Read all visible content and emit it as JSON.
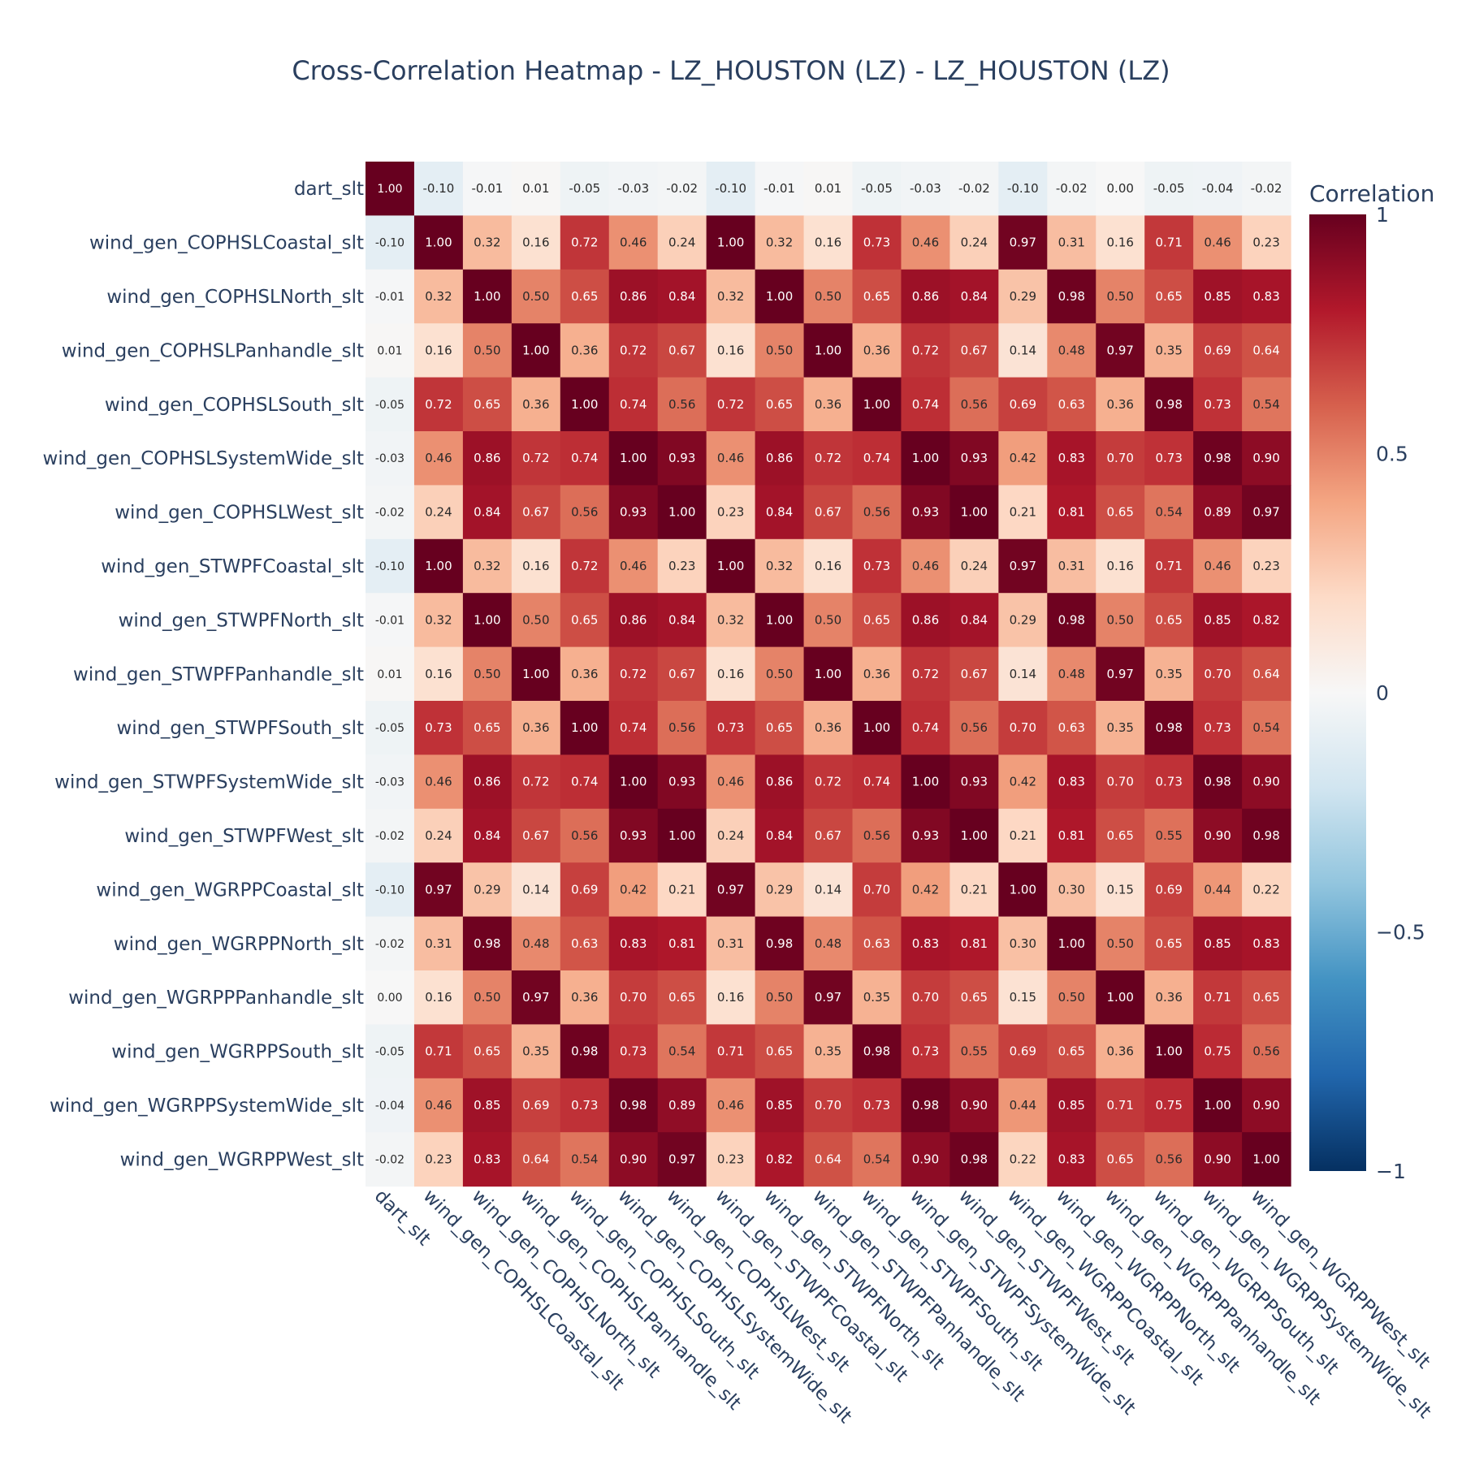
{
  "chart_data": {
    "type": "heatmap",
    "title": "Cross-Correlation Heatmap - LZ_HOUSTON (LZ) - LZ_HOUSTON (LZ)",
    "xlabel": "",
    "ylabel": "",
    "variables": [
      "dart_slt",
      "wind_gen_COPHSLCoastal_slt",
      "wind_gen_COPHSLNorth_slt",
      "wind_gen_COPHSLPanhandle_slt",
      "wind_gen_COPHSLSouth_slt",
      "wind_gen_COPHSLSystemWide_slt",
      "wind_gen_COPHSLWest_slt",
      "wind_gen_STWPFCoastal_slt",
      "wind_gen_STWPFNorth_slt",
      "wind_gen_STWPFPanhandle_slt",
      "wind_gen_STWPFSouth_slt",
      "wind_gen_STWPFSystemWide_slt",
      "wind_gen_STWPFWest_slt",
      "wind_gen_WGRPPCoastal_slt",
      "wind_gen_WGRPPNorth_slt",
      "wind_gen_WGRPPPanhandle_slt",
      "wind_gen_WGRPPSouth_slt",
      "wind_gen_WGRPPSystemWide_slt",
      "wind_gen_WGRPPWest_slt"
    ],
    "z": [
      [
        1.0,
        -0.1,
        -0.01,
        0.01,
        -0.05,
        -0.03,
        -0.02,
        -0.1,
        -0.01,
        0.01,
        -0.05,
        -0.03,
        -0.02,
        -0.1,
        -0.02,
        0.0,
        -0.05,
        -0.04,
        -0.02
      ],
      [
        -0.1,
        1.0,
        0.32,
        0.16,
        0.72,
        0.46,
        0.24,
        1.0,
        0.32,
        0.16,
        0.73,
        0.46,
        0.24,
        0.97,
        0.31,
        0.16,
        0.71,
        0.46,
        0.23
      ],
      [
        -0.01,
        0.32,
        1.0,
        0.5,
        0.65,
        0.86,
        0.84,
        0.32,
        1.0,
        0.5,
        0.65,
        0.86,
        0.84,
        0.29,
        0.98,
        0.5,
        0.65,
        0.85,
        0.83
      ],
      [
        0.01,
        0.16,
        0.5,
        1.0,
        0.36,
        0.72,
        0.67,
        0.16,
        0.5,
        1.0,
        0.36,
        0.72,
        0.67,
        0.14,
        0.48,
        0.97,
        0.35,
        0.69,
        0.64
      ],
      [
        -0.05,
        0.72,
        0.65,
        0.36,
        1.0,
        0.74,
        0.56,
        0.72,
        0.65,
        0.36,
        1.0,
        0.74,
        0.56,
        0.69,
        0.63,
        0.36,
        0.98,
        0.73,
        0.54
      ],
      [
        -0.03,
        0.46,
        0.86,
        0.72,
        0.74,
        1.0,
        0.93,
        0.46,
        0.86,
        0.72,
        0.74,
        1.0,
        0.93,
        0.42,
        0.83,
        0.7,
        0.73,
        0.98,
        0.9
      ],
      [
        -0.02,
        0.24,
        0.84,
        0.67,
        0.56,
        0.93,
        1.0,
        0.23,
        0.84,
        0.67,
        0.56,
        0.93,
        1.0,
        0.21,
        0.81,
        0.65,
        0.54,
        0.89,
        0.97
      ],
      [
        -0.1,
        1.0,
        0.32,
        0.16,
        0.72,
        0.46,
        0.23,
        1.0,
        0.32,
        0.16,
        0.73,
        0.46,
        0.24,
        0.97,
        0.31,
        0.16,
        0.71,
        0.46,
        0.23
      ],
      [
        -0.01,
        0.32,
        1.0,
        0.5,
        0.65,
        0.86,
        0.84,
        0.32,
        1.0,
        0.5,
        0.65,
        0.86,
        0.84,
        0.29,
        0.98,
        0.5,
        0.65,
        0.85,
        0.82
      ],
      [
        0.01,
        0.16,
        0.5,
        1.0,
        0.36,
        0.72,
        0.67,
        0.16,
        0.5,
        1.0,
        0.36,
        0.72,
        0.67,
        0.14,
        0.48,
        0.97,
        0.35,
        0.7,
        0.64
      ],
      [
        -0.05,
        0.73,
        0.65,
        0.36,
        1.0,
        0.74,
        0.56,
        0.73,
        0.65,
        0.36,
        1.0,
        0.74,
        0.56,
        0.7,
        0.63,
        0.35,
        0.98,
        0.73,
        0.54
      ],
      [
        -0.03,
        0.46,
        0.86,
        0.72,
        0.74,
        1.0,
        0.93,
        0.46,
        0.86,
        0.72,
        0.74,
        1.0,
        0.93,
        0.42,
        0.83,
        0.7,
        0.73,
        0.98,
        0.9
      ],
      [
        -0.02,
        0.24,
        0.84,
        0.67,
        0.56,
        0.93,
        1.0,
        0.24,
        0.84,
        0.67,
        0.56,
        0.93,
        1.0,
        0.21,
        0.81,
        0.65,
        0.55,
        0.9,
        0.98
      ],
      [
        -0.1,
        0.97,
        0.29,
        0.14,
        0.69,
        0.42,
        0.21,
        0.97,
        0.29,
        0.14,
        0.7,
        0.42,
        0.21,
        1.0,
        0.3,
        0.15,
        0.69,
        0.44,
        0.22
      ],
      [
        -0.02,
        0.31,
        0.98,
        0.48,
        0.63,
        0.83,
        0.81,
        0.31,
        0.98,
        0.48,
        0.63,
        0.83,
        0.81,
        0.3,
        1.0,
        0.5,
        0.65,
        0.85,
        0.83
      ],
      [
        0.0,
        0.16,
        0.5,
        0.97,
        0.36,
        0.7,
        0.65,
        0.16,
        0.5,
        0.97,
        0.35,
        0.7,
        0.65,
        0.15,
        0.5,
        1.0,
        0.36,
        0.71,
        0.65
      ],
      [
        -0.05,
        0.71,
        0.65,
        0.35,
        0.98,
        0.73,
        0.54,
        0.71,
        0.65,
        0.35,
        0.98,
        0.73,
        0.55,
        0.69,
        0.65,
        0.36,
        1.0,
        0.75,
        0.56
      ],
      [
        -0.04,
        0.46,
        0.85,
        0.69,
        0.73,
        0.98,
        0.89,
        0.46,
        0.85,
        0.7,
        0.73,
        0.98,
        0.9,
        0.44,
        0.85,
        0.71,
        0.75,
        1.0,
        0.9
      ],
      [
        -0.02,
        0.23,
        0.83,
        0.64,
        0.54,
        0.9,
        0.97,
        0.23,
        0.82,
        0.64,
        0.54,
        0.9,
        0.98,
        0.22,
        0.83,
        0.65,
        0.56,
        0.9,
        1.0
      ]
    ],
    "zlim": [
      -1,
      1
    ],
    "colorscale_name": "RdBu",
    "colorscale": [
      [
        0.0,
        "#053061"
      ],
      [
        0.1,
        "#2166ac"
      ],
      [
        0.2,
        "#4393c3"
      ],
      [
        0.3,
        "#92c5de"
      ],
      [
        0.4,
        "#d1e5f0"
      ],
      [
        0.5,
        "#f7f7f7"
      ],
      [
        0.6,
        "#fddbc7"
      ],
      [
        0.7,
        "#f4a582"
      ],
      [
        0.8,
        "#d6604d"
      ],
      [
        0.9,
        "#b2182b"
      ],
      [
        1.0,
        "#67001f"
      ]
    ],
    "colorbar": {
      "title": "Correlation",
      "ticks": [
        1,
        0.5,
        0,
        -0.5,
        -1
      ],
      "tick_labels": [
        "1",
        "0.5",
        "0",
        "−0.5",
        "−1"
      ]
    },
    "grid": false,
    "legend": "colorbar-right"
  }
}
